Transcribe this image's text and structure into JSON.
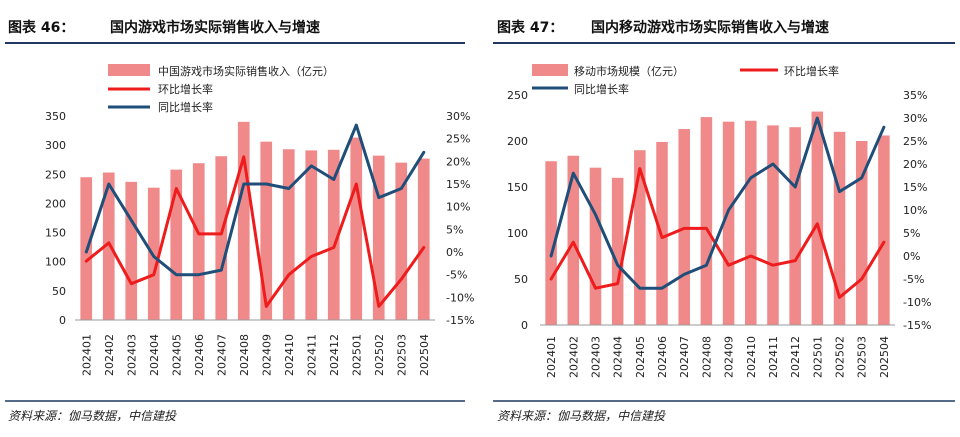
{
  "charts": [
    {
      "figure_label": "图表 46：",
      "title": "国内游戏市场实际销售收入与增速",
      "source": "资料来源：伽马数据，中信建投"
    },
    {
      "figure_label": "图表 47：",
      "title": "国内移动游戏市场实际销售收入与增速",
      "source": "资料来源：伽马数据，中信建投"
    }
  ],
  "colors": {
    "bar": "#f08a8a",
    "mom": "#ee1c1c",
    "yoy": "#1f4e79",
    "rule": "#1f3864"
  },
  "chart_data": [
    {
      "type": "bar",
      "categories": [
        "202401",
        "202402",
        "202403",
        "202404",
        "202405",
        "202406",
        "202407",
        "202408",
        "202409",
        "202410",
        "202411",
        "202412",
        "202501",
        "202502",
        "202503",
        "202504"
      ],
      "series": [
        {
          "name": "中国游戏市场实际销售收入（亿元）",
          "axis": "left",
          "type": "bar",
          "values": [
            245,
            253,
            237,
            227,
            258,
            269,
            281,
            340,
            306,
            293,
            291,
            292,
            313,
            282,
            270,
            277
          ]
        },
        {
          "name": "环比增长率",
          "axis": "right",
          "type": "line",
          "values": [
            -2,
            2,
            -7,
            -5,
            14,
            4,
            4,
            21,
            -12,
            -5,
            -1,
            1,
            15,
            -12,
            -6,
            1
          ]
        },
        {
          "name": "同比增长率",
          "axis": "right",
          "type": "line",
          "values": [
            0,
            15,
            7,
            -1,
            -5,
            -5,
            -4,
            15,
            15,
            14,
            19,
            16,
            28,
            12,
            14,
            22
          ]
        }
      ],
      "left_ticks": [
        0,
        50,
        100,
        150,
        200,
        250,
        300,
        350
      ],
      "right_ticks": [
        -15,
        -10,
        -5,
        0,
        5,
        10,
        15,
        20,
        25,
        30
      ],
      "left_ylim": [
        0,
        350
      ],
      "right_ylim": [
        -15,
        30
      ],
      "right_unit": "%",
      "legend_position": "top-left"
    },
    {
      "type": "bar",
      "categories": [
        "202401",
        "202402",
        "202403",
        "202404",
        "202405",
        "202406",
        "202407",
        "202408",
        "202409",
        "202410",
        "202411",
        "202412",
        "202501",
        "202502",
        "202503",
        "202504"
      ],
      "series": [
        {
          "name": "移动市场规模（亿元）",
          "axis": "left",
          "type": "bar",
          "values": [
            178,
            184,
            171,
            160,
            190,
            199,
            213,
            226,
            221,
            222,
            217,
            215,
            232,
            210,
            200,
            206
          ]
        },
        {
          "name": "环比增长率",
          "axis": "right",
          "type": "line",
          "values": [
            -5,
            3,
            -7,
            -6,
            19,
            4,
            6,
            6,
            -2,
            0,
            -2,
            -1,
            7,
            -9,
            -5,
            3
          ]
        },
        {
          "name": "同比增长率",
          "axis": "right",
          "type": "line",
          "values": [
            0,
            18,
            9,
            -2,
            -7,
            -7,
            -4,
            -2,
            10,
            17,
            20,
            15,
            30,
            14,
            17,
            28
          ]
        }
      ],
      "left_ticks": [
        0,
        50,
        100,
        150,
        200,
        250
      ],
      "right_ticks": [
        -15,
        -10,
        -5,
        0,
        5,
        10,
        15,
        20,
        25,
        30,
        35
      ],
      "left_ylim": [
        0,
        250
      ],
      "right_ylim": [
        -15,
        35
      ],
      "right_unit": "%",
      "legend_position": "top-left"
    }
  ]
}
